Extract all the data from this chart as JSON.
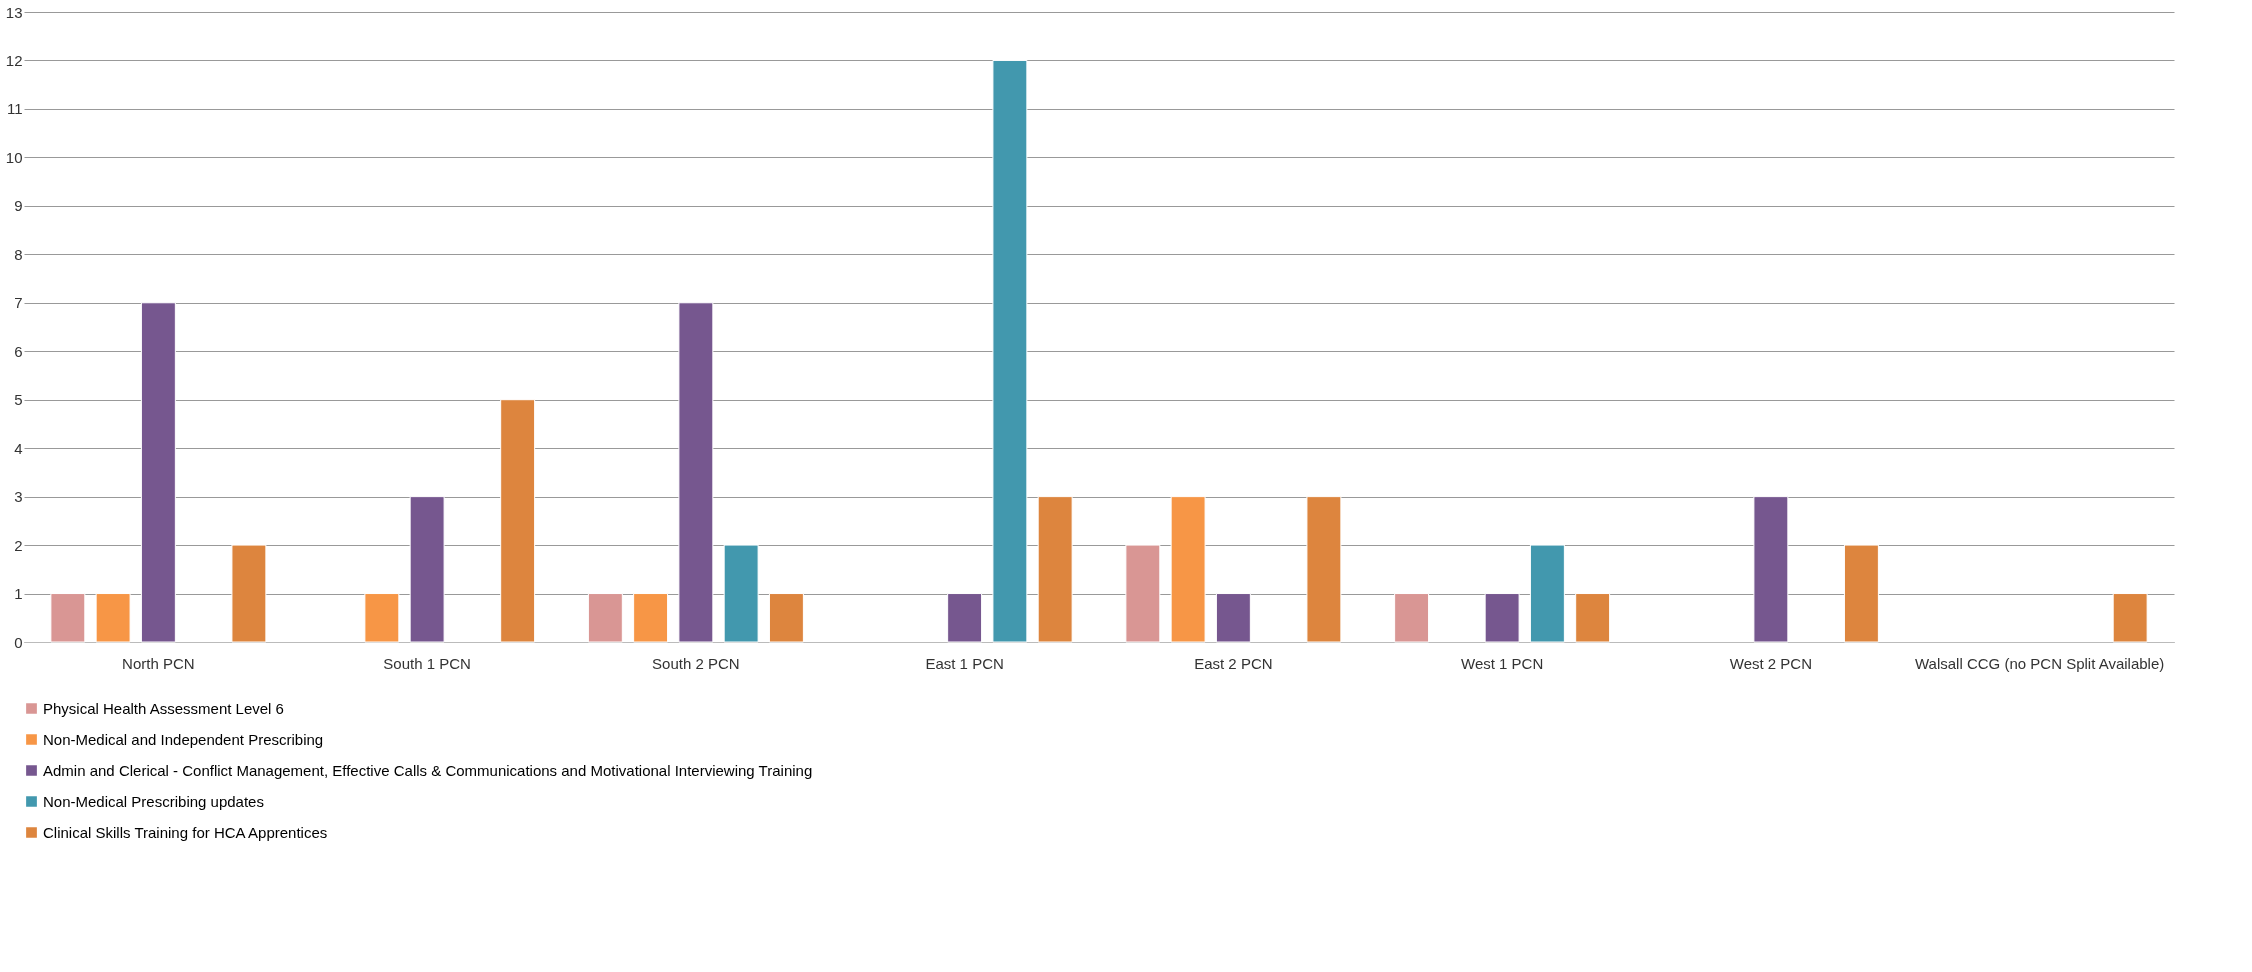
{
  "chart_data": {
    "type": "bar",
    "categories": [
      "North PCN",
      "South 1 PCN",
      "South 2 PCN",
      "East 1 PCN",
      "East 2 PCN",
      "West 1 PCN",
      "West 2 PCN",
      "Walsall CCG (no PCN Split Available)"
    ],
    "series": [
      {
        "name": "Physical Health Assessment Level 6",
        "color": "#d99694",
        "values": [
          1,
          null,
          1,
          null,
          2,
          1,
          null,
          null
        ]
      },
      {
        "name": "Non-Medical and Independent Prescribing",
        "color": "#f79646",
        "values": [
          1,
          1,
          1,
          null,
          3,
          null,
          null,
          null
        ]
      },
      {
        "name": "Admin and Clerical  - Conflict Management, Effective Calls & Communications and Motivational Interviewing Training",
        "color": "#76578f",
        "values": [
          7,
          3,
          7,
          1,
          1,
          1,
          3,
          null
        ]
      },
      {
        "name": "Non-Medical Prescribing updates",
        "color": "#4298ae",
        "values": [
          null,
          null,
          2,
          12,
          null,
          2,
          null,
          null
        ]
      },
      {
        "name": "Clinical Skills Training for HCA Apprentices",
        "color": "#dd853e",
        "values": [
          2,
          5,
          1,
          3,
          3,
          1,
          2,
          1
        ]
      }
    ],
    "ylim": [
      0,
      13
    ],
    "yticks": [
      0,
      1,
      2,
      3,
      4,
      5,
      6,
      7,
      8,
      9,
      10,
      11,
      12,
      13
    ],
    "grid": "y",
    "legend": "bottom"
  }
}
